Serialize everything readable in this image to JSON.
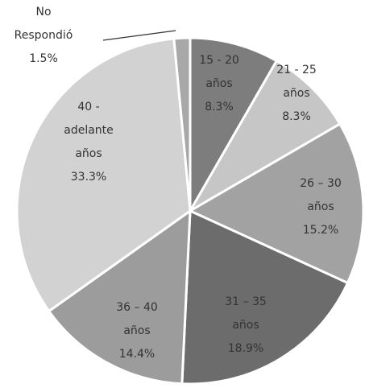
{
  "chart_data": {
    "type": "pie",
    "categories": [
      [
        "No",
        "Respondió"
      ],
      [
        "15 - 20",
        "años"
      ],
      [
        "21 - 25",
        "años"
      ],
      [
        "26 – 30",
        "años"
      ],
      [
        "31 – 35",
        "años"
      ],
      [
        "36 – 40",
        "años"
      ],
      [
        "40 -",
        "adelante",
        "años"
      ]
    ],
    "values": [
      1.5,
      8.3,
      8.3,
      15.2,
      18.9,
      14.4,
      33.3
    ],
    "value_labels": [
      "1.5%",
      "8.3%",
      "8.3%",
      "15.2%",
      "18.9%",
      "14.4%",
      "33.3%"
    ],
    "colors": [
      "#a8a8a8",
      "#7d7d7d",
      "#c6c6c6",
      "#a2a2a2",
      "#6c6c6c",
      "#9c9c9c",
      "#d2d2d2"
    ]
  }
}
